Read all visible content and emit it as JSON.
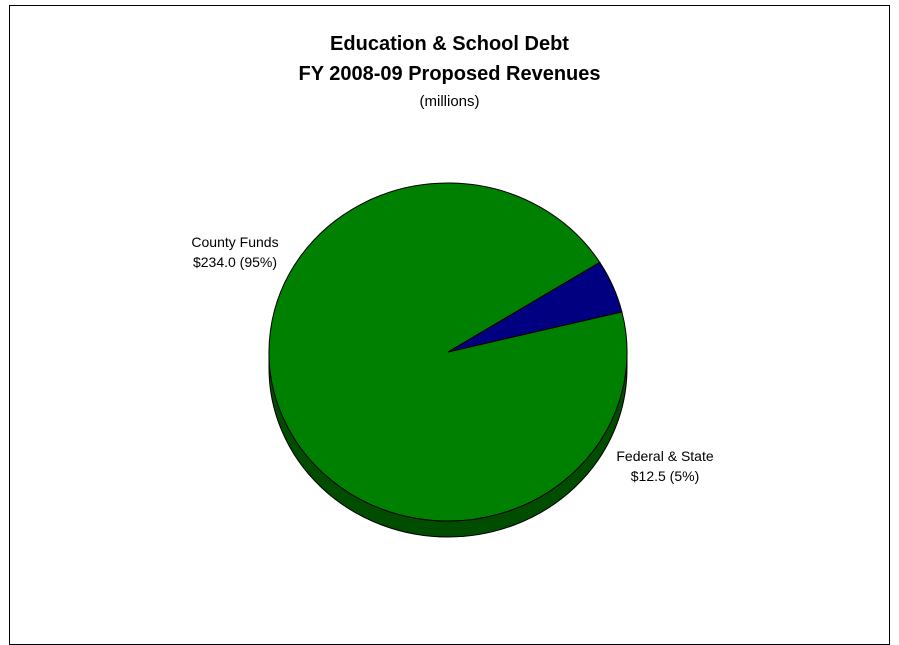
{
  "chart_data": {
    "type": "pie",
    "title": "Education & School Debt",
    "subtitle": "FY 2008-09 Proposed Revenues",
    "units": "(millions)",
    "slices": [
      {
        "name": "County Funds",
        "value": 234.0,
        "value_label": "$234.0 (95%)",
        "percent": 95,
        "color": "#008000",
        "side_color": "#004d00"
      },
      {
        "name": "Federal & State",
        "value": 12.5,
        "value_label": "$12.5 (5%)",
        "percent": 5,
        "color": "#000080",
        "side_color": "#00004d"
      }
    ]
  }
}
